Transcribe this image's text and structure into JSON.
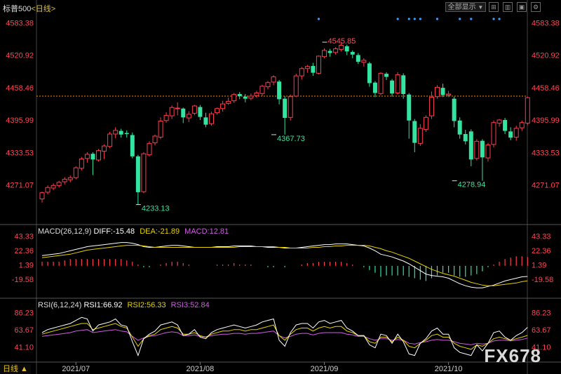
{
  "header": {
    "title": "标普500",
    "period": "<日线>",
    "range_button": "全部显示",
    "range_button_caret": "▼"
  },
  "toolbar": {
    "icons": [
      "grid-icon",
      "bars-icon",
      "layout-icon",
      "settings-icon"
    ]
  },
  "macd": {
    "label": "MACD(26,12,9)",
    "diff": "DIFF:-15.48",
    "dea": "DEA:-21.89",
    "macd": "MACD:12.81"
  },
  "rsi": {
    "label": "RSI(6,12,24)",
    "rsi1": "RSI1:66.92",
    "rsi2": "RSI2:56.33",
    "rsi3": "RSI3:52.84"
  },
  "footer": {
    "tag": "日线 ▲"
  },
  "watermark": "FX678",
  "colors": {
    "up": "#ff3b4e",
    "down": "#33e3a0",
    "axis_text": "#ff4455",
    "diff_line": "#ffffff",
    "dea_line": "#e6d200",
    "macd_label": "#d05ce3",
    "rsi1": "#ffffff",
    "rsi2": "#e6d200",
    "rsi3": "#d05ce3",
    "ref_line": "#ff8c00"
  },
  "chart_data": [
    {
      "type": "candlestick",
      "title": "标普500",
      "y_ticks": [
        "4583.38",
        "4520.92",
        "4458.46",
        "4395.99",
        "4333.53",
        "4271.07"
      ],
      "ylim": [
        4215,
        4600
      ],
      "x_ticks": [
        "2021/07",
        "2021/08",
        "2021/09",
        "2021/10"
      ],
      "x_tick_index": [
        6,
        28,
        50,
        72
      ],
      "reference_price": 4442,
      "annotations": [
        {
          "text": "4545.85",
          "index": 50,
          "value": 4545.85
        },
        {
          "text": "4233.13",
          "index": 17,
          "value": 4233.13
        },
        {
          "text": "4367.73",
          "index": 41,
          "value": 4367.73
        },
        {
          "text": "4278.94",
          "index": 73,
          "value": 4278.94
        }
      ],
      "event_markers": [
        49,
        63,
        65,
        66,
        67,
        70,
        74,
        76,
        80,
        81
      ],
      "candles": [
        [
          4244,
          4256,
          4237,
          4258
        ],
        [
          4257,
          4266,
          4253,
          4270
        ],
        [
          4265,
          4270,
          4261,
          4274
        ],
        [
          4270,
          4276,
          4266,
          4279
        ],
        [
          4277,
          4282,
          4272,
          4286
        ],
        [
          4281,
          4285,
          4276,
          4289
        ],
        [
          4285,
          4304,
          4282,
          4307
        ],
        [
          4303,
          4321,
          4299,
          4325
        ],
        [
          4322,
          4330,
          4314,
          4334
        ],
        [
          4331,
          4320,
          4290,
          4334
        ],
        [
          4319,
          4337,
          4316,
          4340
        ],
        [
          4336,
          4346,
          4321,
          4349
        ],
        [
          4345,
          4369,
          4342,
          4373
        ],
        [
          4369,
          4376,
          4361,
          4382
        ],
        [
          4375,
          4368,
          4362,
          4379
        ],
        [
          4371,
          4369,
          4362,
          4376
        ],
        [
          4367,
          4326,
          4322,
          4372
        ],
        [
          4326,
          4257,
          4233,
          4329
        ],
        [
          4258,
          4331,
          4255,
          4334
        ],
        [
          4329,
          4351,
          4326,
          4355
        ],
        [
          4352,
          4365,
          4347,
          4368
        ],
        [
          4363,
          4394,
          4359,
          4401
        ],
        [
          4395,
          4405,
          4391,
          4411
        ],
        [
          4404,
          4420,
          4398,
          4424
        ],
        [
          4419,
          4419,
          4405,
          4430
        ],
        [
          4418,
          4401,
          4390,
          4420
        ],
        [
          4400,
          4407,
          4392,
          4413
        ],
        [
          4409,
          4423,
          4405,
          4425
        ],
        [
          4421,
          4402,
          4396,
          4425
        ],
        [
          4401,
          4387,
          4382,
          4410
        ],
        [
          4389,
          4408,
          4385,
          4412
        ],
        [
          4410,
          4418,
          4406,
          4420
        ],
        [
          4418,
          4427,
          4412,
          4433
        ],
        [
          4428,
          4432,
          4425,
          4439
        ],
        [
          4433,
          4445,
          4429,
          4448
        ],
        [
          4446,
          4442,
          4436,
          4450
        ],
        [
          4441,
          4437,
          4430,
          4446
        ],
        [
          4438,
          4442,
          4434,
          4447
        ],
        [
          4443,
          4448,
          4439,
          4452
        ],
        [
          4447,
          4461,
          4442,
          4464
        ],
        [
          4460,
          4468,
          4455,
          4471
        ],
        [
          4469,
          4479,
          4463,
          4482
        ],
        [
          4470,
          4436,
          4426,
          4473
        ],
        [
          4437,
          4400,
          4368,
          4442
        ],
        [
          4401,
          4441,
          4395,
          4445
        ],
        [
          4442,
          4481,
          4440,
          4485
        ],
        [
          4481,
          4495,
          4474,
          4498
        ],
        [
          4495,
          4499,
          4487,
          4502
        ],
        [
          4500,
          4487,
          4481,
          4506
        ],
        [
          4486,
          4519,
          4484,
          4520
        ],
        [
          4518,
          4530,
          4515,
          4534
        ],
        [
          4529,
          4525,
          4518,
          4533
        ],
        [
          4526,
          4533,
          4522,
          4536
        ],
        [
          4532,
          4540,
          4528,
          4545.85
        ],
        [
          4538,
          4528,
          4521,
          4541
        ],
        [
          4527,
          4522,
          4515,
          4530
        ],
        [
          4521,
          4508,
          4504,
          4525
        ],
        [
          4507,
          4511,
          4499,
          4515
        ],
        [
          4505,
          4467,
          4460,
          4508
        ],
        [
          4468,
          4448,
          4440,
          4471
        ],
        [
          4447,
          4486,
          4444,
          4488
        ],
        [
          4485,
          4479,
          4473,
          4488
        ],
        [
          4472,
          4447,
          4441,
          4475
        ],
        [
          4448,
          4483,
          4445,
          4488
        ],
        [
          4482,
          4446,
          4437,
          4486
        ],
        [
          4445,
          4395,
          4360,
          4448
        ],
        [
          4394,
          4352,
          4334,
          4398
        ],
        [
          4351,
          4380,
          4346,
          4388
        ],
        [
          4378,
          4401,
          4373,
          4405
        ],
        [
          4404,
          4440,
          4398,
          4451
        ],
        [
          4441,
          4459,
          4437,
          4463
        ],
        [
          4458,
          4444,
          4440,
          4466
        ],
        [
          4444,
          4446,
          4440,
          4452
        ],
        [
          4437,
          4394,
          4382,
          4441
        ],
        [
          4395,
          4368,
          4360,
          4401
        ],
        [
          4369,
          4355,
          4349,
          4377
        ],
        [
          4374,
          4320,
          4307,
          4378
        ],
        [
          4322,
          4355,
          4318,
          4359
        ],
        [
          4356,
          4324,
          4278.94,
          4359
        ],
        [
          4323,
          4348,
          4316,
          4352
        ],
        [
          4349,
          4391,
          4343,
          4395
        ],
        [
          4390,
          4396,
          4383,
          4398
        ],
        [
          4396,
          4375,
          4369,
          4400
        ],
        [
          4374,
          4362,
          4357,
          4382
        ],
        [
          4363,
          4380,
          4356,
          4385
        ],
        [
          4381,
          4391,
          4375,
          4395
        ],
        [
          4390,
          4439,
          4386,
          4441
        ]
      ]
    },
    {
      "type": "bar+line",
      "title": "MACD(26,12,9)",
      "y_ticks": [
        "43.33",
        "22.36",
        "1.39",
        "-19.58"
      ],
      "ylim": [
        -40,
        50
      ],
      "series": [
        {
          "name": "DIFF",
          "values": [
            15,
            16,
            17,
            18,
            20,
            22,
            24,
            26,
            28,
            29,
            30,
            31,
            32,
            33,
            34,
            34,
            33,
            31,
            28,
            27,
            27,
            28,
            29,
            30,
            30,
            29,
            28,
            27,
            27,
            27,
            27,
            28,
            28,
            28,
            29,
            29,
            29,
            29,
            28,
            28,
            27,
            27,
            27,
            26,
            26,
            26,
            27,
            28,
            29,
            30,
            31,
            31,
            32,
            32,
            32,
            31,
            30,
            29,
            26,
            22,
            17,
            15,
            13,
            10,
            7,
            3,
            -2,
            -7,
            -12,
            -14,
            -15,
            -16,
            -18,
            -22,
            -26,
            -29,
            -31,
            -32,
            -32,
            -30,
            -28,
            -25,
            -22,
            -20,
            -18,
            -16,
            -15.48
          ]
        },
        {
          "name": "DEA",
          "values": [
            12,
            13,
            14,
            15,
            16,
            17,
            19,
            21,
            23,
            24,
            25,
            26,
            27,
            28,
            29,
            30,
            30,
            30,
            29,
            28,
            27,
            27,
            27,
            27,
            27,
            27,
            27,
            27,
            27,
            27,
            27,
            27,
            27,
            27,
            27,
            28,
            28,
            28,
            28,
            28,
            28,
            28,
            27,
            27,
            26,
            26,
            26,
            26,
            27,
            27,
            28,
            28,
            29,
            29,
            30,
            30,
            30,
            30,
            29,
            27,
            25,
            22,
            20,
            17,
            14,
            11,
            7,
            3,
            -1,
            -5,
            -8,
            -11,
            -13,
            -15,
            -18,
            -21,
            -24,
            -26,
            -28,
            -29,
            -29,
            -28,
            -27,
            -26,
            -25,
            -23,
            -21.89
          ]
        },
        {
          "name": "MACD",
          "values": [
            6,
            6,
            6,
            6,
            8,
            10,
            10,
            10,
            10,
            10,
            10,
            10,
            10,
            10,
            10,
            8,
            6,
            2,
            -2,
            -2,
            0,
            2,
            4,
            6,
            6,
            4,
            2,
            0,
            0,
            0,
            0,
            2,
            2,
            2,
            4,
            2,
            2,
            2,
            0,
            0,
            -2,
            -2,
            0,
            -2,
            0,
            0,
            2,
            4,
            4,
            6,
            6,
            6,
            6,
            6,
            4,
            2,
            0,
            -2,
            -6,
            -10,
            -16,
            -14,
            -14,
            -14,
            -14,
            -16,
            -18,
            -20,
            -22,
            -18,
            -14,
            -10,
            -10,
            -14,
            -16,
            -16,
            -14,
            -12,
            -8,
            -2,
            2,
            6,
            10,
            12,
            14,
            14,
            12.81
          ]
        }
      ]
    },
    {
      "type": "line",
      "title": "RSI(6,12,24)",
      "y_ticks": [
        "86.23",
        "63.67",
        "41.10"
      ],
      "ylim": [
        25,
        95
      ],
      "series": [
        {
          "name": "RSI1",
          "values": [
            60,
            64,
            66,
            68,
            70,
            72,
            76,
            80,
            78,
            62,
            70,
            72,
            74,
            78,
            70,
            68,
            48,
            30,
            52,
            58,
            62,
            70,
            72,
            74,
            70,
            56,
            58,
            64,
            54,
            52,
            60,
            64,
            66,
            68,
            70,
            68,
            66,
            68,
            70,
            74,
            76,
            78,
            50,
            42,
            60,
            70,
            72,
            72,
            66,
            74,
            76,
            72,
            74,
            76,
            66,
            62,
            56,
            56,
            44,
            40,
            58,
            56,
            46,
            58,
            48,
            32,
            30,
            46,
            52,
            62,
            66,
            58,
            58,
            40,
            34,
            32,
            30,
            44,
            36,
            46,
            60,
            62,
            54,
            50,
            56,
            60,
            66.92
          ]
        },
        {
          "name": "RSI2",
          "values": [
            58,
            60,
            62,
            64,
            66,
            68,
            70,
            72,
            72,
            64,
            66,
            68,
            70,
            72,
            68,
            66,
            54,
            42,
            52,
            56,
            58,
            64,
            66,
            68,
            66,
            58,
            58,
            60,
            56,
            54,
            58,
            60,
            62,
            62,
            64,
            64,
            62,
            64,
            64,
            66,
            68,
            70,
            56,
            50,
            58,
            64,
            66,
            66,
            62,
            66,
            68,
            66,
            68,
            68,
            62,
            60,
            56,
            56,
            48,
            46,
            54,
            54,
            48,
            54,
            50,
            42,
            40,
            46,
            50,
            56,
            58,
            54,
            54,
            46,
            42,
            40,
            38,
            44,
            42,
            46,
            52,
            54,
            52,
            50,
            52,
            54,
            56.33
          ]
        },
        {
          "name": "RSI3",
          "values": [
            55,
            56,
            57,
            58,
            59,
            60,
            62,
            63,
            64,
            60,
            61,
            62,
            63,
            64,
            62,
            61,
            55,
            50,
            53,
            55,
            56,
            58,
            60,
            61,
            60,
            56,
            56,
            57,
            55,
            54,
            56,
            57,
            58,
            58,
            59,
            59,
            58,
            59,
            59,
            60,
            61,
            62,
            56,
            53,
            55,
            58,
            59,
            59,
            57,
            59,
            60,
            60,
            60,
            60,
            58,
            57,
            55,
            55,
            52,
            50,
            52,
            52,
            50,
            51,
            50,
            46,
            45,
            47,
            48,
            50,
            51,
            50,
            50,
            48,
            46,
            45,
            44,
            46,
            45,
            46,
            49,
            50,
            50,
            49,
            50,
            51,
            52.84
          ]
        }
      ]
    }
  ]
}
